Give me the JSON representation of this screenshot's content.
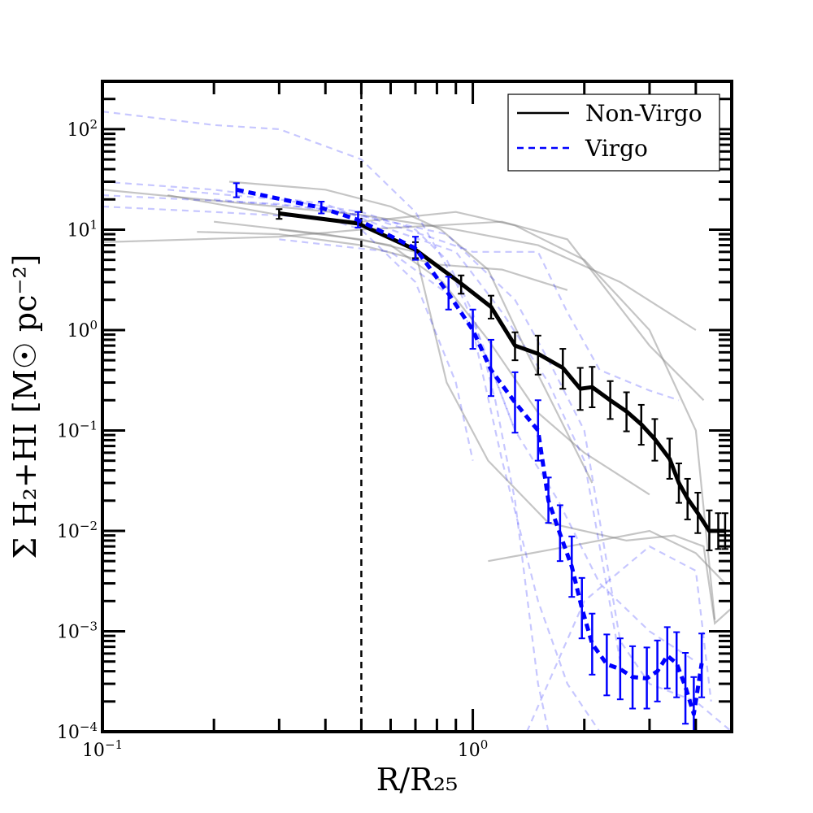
{
  "chart_data": {
    "type": "line",
    "xscale": "log",
    "yscale": "log",
    "xlim": [
      0.1,
      5.0
    ],
    "ylim": [
      0.0001,
      300
    ],
    "xlabel": "R/R₂₅",
    "ylabel": "Σ H₂+HI [M☉ pc⁻²]",
    "x_ticks": [
      {
        "value": 0.1,
        "base": "10",
        "exp": "−1"
      },
      {
        "value": 1,
        "base": "10",
        "exp": "0"
      }
    ],
    "y_ticks": [
      {
        "value": 100,
        "base": "10",
        "exp": "2"
      },
      {
        "value": 10,
        "base": "10",
        "exp": "1"
      },
      {
        "value": 1,
        "base": "10",
        "exp": "0"
      },
      {
        "value": 0.1,
        "base": "10",
        "exp": "−1"
      },
      {
        "value": 0.01,
        "base": "10",
        "exp": "−2"
      },
      {
        "value": 0.001,
        "base": "10",
        "exp": "−3"
      },
      {
        "value": 0.0001,
        "base": "10",
        "exp": "−4"
      }
    ],
    "reference_line_x": 0.5,
    "legend": {
      "position": "top-right",
      "entries": [
        {
          "label": "Non-Virgo",
          "color": "#000000",
          "style": "solid"
        },
        {
          "label": "Virgo",
          "color": "#0000ff",
          "style": "dashed"
        }
      ]
    },
    "series": [
      {
        "name": "Non-Virgo",
        "color": "#000000",
        "style": "solid",
        "x": [
          0.3,
          0.49,
          0.7,
          0.93,
          1.12,
          1.3,
          1.5,
          1.75,
          1.95,
          2.1,
          2.35,
          2.6,
          2.85,
          3.1,
          3.4,
          3.6,
          3.8,
          4.05,
          4.35,
          4.6,
          4.8
        ],
        "y": [
          14.5,
          11.5,
          6.3,
          2.9,
          1.7,
          0.7,
          0.58,
          0.42,
          0.26,
          0.27,
          0.2,
          0.155,
          0.115,
          0.082,
          0.052,
          0.03,
          0.021,
          0.015,
          0.01,
          0.01,
          0.01
        ],
        "err_low": [
          12.8,
          null,
          5.2,
          2.3,
          1.3,
          0.5,
          0.36,
          0.26,
          0.16,
          0.17,
          0.13,
          0.098,
          0.072,
          0.05,
          0.033,
          0.019,
          0.013,
          0.0095,
          0.0064,
          0.0066,
          0.0066
        ],
        "err_high": [
          16.0,
          null,
          7.5,
          3.5,
          2.2,
          0.95,
          0.88,
          0.65,
          0.42,
          0.43,
          0.31,
          0.24,
          0.18,
          0.13,
          0.083,
          0.047,
          0.033,
          0.024,
          0.016,
          0.015,
          0.015
        ]
      },
      {
        "name": "Virgo",
        "color": "#0000ff",
        "style": "dashed",
        "x": [
          0.23,
          0.39,
          0.49,
          0.7,
          0.86,
          1.0,
          1.12,
          1.3,
          1.5,
          1.6,
          1.72,
          1.85,
          1.97,
          2.1,
          2.3,
          2.5,
          2.7,
          2.95,
          3.15,
          3.35,
          3.55,
          3.75,
          3.95,
          4.15
        ],
        "y": [
          25,
          16.5,
          12.5,
          6.5,
          2.3,
          1.0,
          0.4,
          0.19,
          0.1,
          0.02,
          0.0093,
          0.0044,
          0.0017,
          0.00075,
          0.00047,
          0.00042,
          0.00035,
          0.00034,
          0.0004,
          0.00057,
          0.00048,
          0.00028,
          0.00015,
          0.00048
        ],
        "err_low": [
          21,
          14.5,
          10.5,
          5.0,
          1.6,
          0.65,
          0.22,
          0.095,
          0.05,
          0.012,
          0.005,
          0.0022,
          0.00085,
          0.00037,
          0.00023,
          0.00021,
          0.00017,
          0.00017,
          0.0002,
          0.00027,
          0.00022,
          0.00012,
          6.5e-05,
          0.00022
        ],
        "err_high": [
          29,
          19,
          15,
          8.5,
          3.4,
          1.6,
          0.8,
          0.38,
          0.2,
          0.034,
          0.018,
          0.0088,
          0.0034,
          0.0015,
          0.00093,
          0.00085,
          0.00071,
          0.00069,
          0.00081,
          0.0011,
          0.00098,
          0.00061,
          0.00035,
          0.00095
        ]
      }
    ],
    "individual_nonvirgo": [
      {
        "x": [
          0.1,
          0.25,
          0.5,
          0.9,
          1.5,
          2.5,
          4.0
        ],
        "y": [
          25,
          18,
          14,
          10,
          7,
          3,
          1
        ]
      },
      {
        "x": [
          0.1,
          0.3,
          0.5,
          0.8,
          1.2,
          1.8,
          3.0,
          4.2
        ],
        "y": [
          7.5,
          8.5,
          10,
          11,
          12,
          8,
          0.7,
          0.2
        ]
      },
      {
        "x": [
          0.18,
          0.3,
          0.5,
          0.8,
          1.2,
          1.8
        ],
        "y": [
          9.5,
          9,
          7,
          4.5,
          4,
          2.5
        ]
      },
      {
        "x": [
          0.2,
          0.4,
          0.6,
          0.83,
          1.1,
          1.5,
          2.0,
          3.0
        ],
        "y": [
          12,
          9,
          7,
          3,
          0.8,
          0.15,
          0.06,
          0.023
        ]
      },
      {
        "x": [
          0.15,
          0.3,
          0.5,
          0.9,
          1.3,
          2.0,
          3.0,
          4.0,
          4.5
        ],
        "y": [
          22,
          14,
          12,
          15,
          11,
          5,
          1,
          0.1,
          0.0013
        ]
      },
      {
        "x": [
          0.22,
          0.4,
          0.6,
          0.82,
          1.1,
          1.4,
          2.1
        ],
        "y": [
          30,
          25,
          17,
          10,
          4,
          0.6,
          0.03
        ]
      },
      {
        "x": [
          0.3,
          0.5,
          0.7,
          0.85,
          1.1,
          1.6,
          2.6,
          3.5,
          4.2,
          4.5,
          5.0
        ],
        "y": [
          10,
          8,
          6,
          0.3,
          0.05,
          0.012,
          0.008,
          0.009,
          0.007,
          0.0012,
          0.0017
        ]
      },
      {
        "x": [
          1.1,
          2.0,
          3.0,
          4.0,
          4.8
        ],
        "y": [
          0.005,
          0.0075,
          0.01,
          0.006,
          0.003
        ]
      }
    ],
    "individual_virgo": [
      {
        "x": [
          0.1,
          0.2,
          0.3,
          0.5,
          0.7,
          0.9,
          1.05,
          1.3
        ],
        "y": [
          150,
          110,
          100,
          50,
          15,
          3,
          0.8,
          0.1
        ]
      },
      {
        "x": [
          0.1,
          0.2,
          0.4,
          0.6,
          0.9,
          1.2,
          1.6,
          2.0,
          2.5
        ],
        "y": [
          30,
          25,
          18,
          10,
          6,
          1.5,
          0.3,
          0.05,
          0.0005
        ]
      },
      {
        "x": [
          0.1,
          0.2,
          0.4,
          0.5,
          0.7,
          0.9,
          1.0
        ],
        "y": [
          17,
          15,
          13,
          10,
          3,
          0.3,
          0.05
        ]
      },
      {
        "x": [
          0.15,
          0.3,
          0.5,
          0.7,
          0.85,
          1.0,
          1.15,
          1.3,
          1.5,
          1.6
        ],
        "y": [
          25,
          20,
          15,
          10,
          5,
          1.5,
          0.2,
          0.02,
          0.0003,
          0.0001
        ]
      },
      {
        "x": [
          0.2,
          0.4,
          0.6,
          0.85,
          1.0,
          1.3,
          1.6,
          2.0,
          2.5,
          3.0,
          4.0,
          5.0
        ],
        "y": [
          20,
          16,
          12,
          9,
          5,
          2,
          0.5,
          0.1,
          0.0008,
          0.0003,
          0.0002,
          0.0001
        ]
      },
      {
        "x": [
          0.1,
          0.3,
          0.5,
          0.8,
          1.0,
          1.5,
          1.8,
          2.2,
          3.0,
          3.6
        ],
        "y": [
          22,
          18,
          14,
          8,
          6,
          6,
          1.5,
          0.4,
          0.25,
          0.2
        ]
      },
      {
        "x": [
          0.3,
          0.6,
          0.9,
          1.1,
          1.3,
          1.7,
          2.2,
          3.0,
          4.0
        ],
        "y": [
          8,
          6,
          2,
          0.5,
          0.1,
          0.02,
          0.003,
          0.001,
          0.0005
        ]
      },
      {
        "x": [
          1.4,
          2.0,
          3.0,
          4.0,
          4.4
        ],
        "y": [
          0.0001,
          0.002,
          0.007,
          0.004,
          0.0002
        ]
      },
      {
        "x": [
          1.0,
          1.2,
          1.5,
          1.8,
          2.2
        ],
        "y": [
          1.0,
          0.05,
          0.002,
          0.0003,
          0.0001
        ]
      }
    ]
  }
}
